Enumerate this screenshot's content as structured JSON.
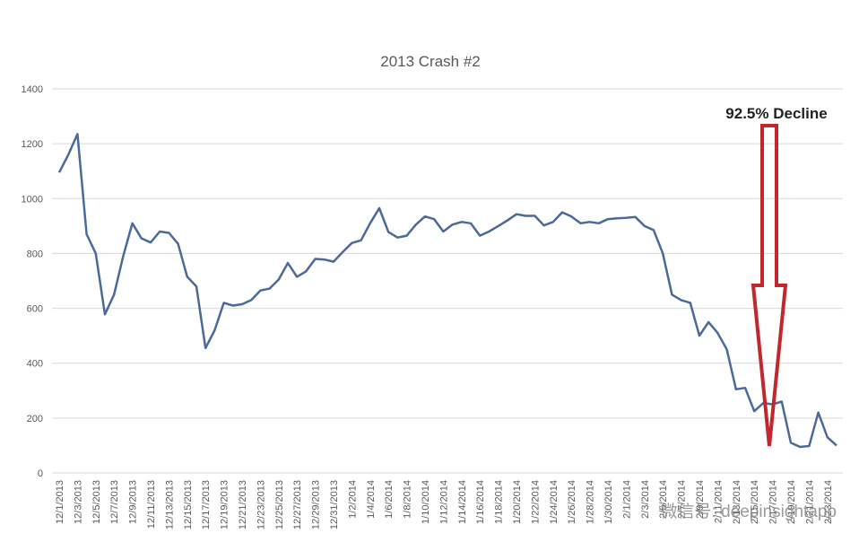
{
  "chart_data": {
    "type": "line",
    "title": "2013 Crash #2",
    "annotation": "92.5% Decline",
    "watermark": "微信号: deepinsightapp",
    "color": "#4a6a9a",
    "grid": true,
    "ylim": [
      0,
      1400
    ],
    "yticks": [
      0,
      200,
      400,
      600,
      800,
      1000,
      1200,
      1400
    ],
    "categories": [
      "12/1/2013",
      null,
      "12/3/2013",
      null,
      "12/5/2013",
      null,
      "12/7/2013",
      null,
      "12/9/2013",
      null,
      "12/11/2013",
      null,
      "12/13/2013",
      null,
      "12/15/2013",
      null,
      "12/17/2013",
      null,
      "12/19/2013",
      null,
      "12/21/2013",
      null,
      "12/23/2013",
      null,
      "12/25/2013",
      null,
      "12/27/2013",
      null,
      "12/29/2013",
      null,
      "12/31/2013",
      null,
      "1/2/2014",
      null,
      "1/4/2014",
      null,
      "1/6/2014",
      null,
      "1/8/2014",
      null,
      "1/10/2014",
      null,
      "1/12/2014",
      null,
      "1/14/2014",
      null,
      "1/16/2014",
      null,
      "1/18/2014",
      null,
      "1/20/2014",
      null,
      "1/22/2014",
      null,
      "1/24/2014",
      null,
      "1/26/2014",
      null,
      "1/28/2014",
      null,
      "1/30/2014",
      null,
      "2/1/2014",
      null,
      "2/3/2014",
      null,
      "2/5/2014",
      null,
      "2/7/2014",
      null,
      "2/9/2014",
      null,
      "2/11/2014",
      null,
      "2/13/2014",
      null,
      "2/15/2014",
      null,
      "2/17/2014",
      null,
      "2/19/2014",
      null,
      "2/21/2014",
      null,
      "2/23/2014",
      null
    ],
    "values": [
      1095,
      1160,
      1235,
      870,
      800,
      578,
      650,
      790,
      910,
      855,
      840,
      880,
      875,
      835,
      715,
      680,
      455,
      520,
      620,
      610,
      615,
      630,
      665,
      672,
      705,
      765,
      715,
      735,
      780,
      778,
      770,
      805,
      838,
      848,
      910,
      965,
      878,
      858,
      865,
      905,
      935,
      925,
      880,
      905,
      915,
      910,
      865,
      880,
      900,
      920,
      943,
      937,
      937,
      902,
      915,
      950,
      935,
      910,
      915,
      910,
      925,
      928,
      930,
      933,
      900,
      885,
      800,
      650,
      630,
      620,
      500,
      550,
      510,
      450,
      305,
      310,
      225,
      255,
      250,
      260,
      110,
      95,
      98,
      220,
      130,
      100
    ]
  }
}
